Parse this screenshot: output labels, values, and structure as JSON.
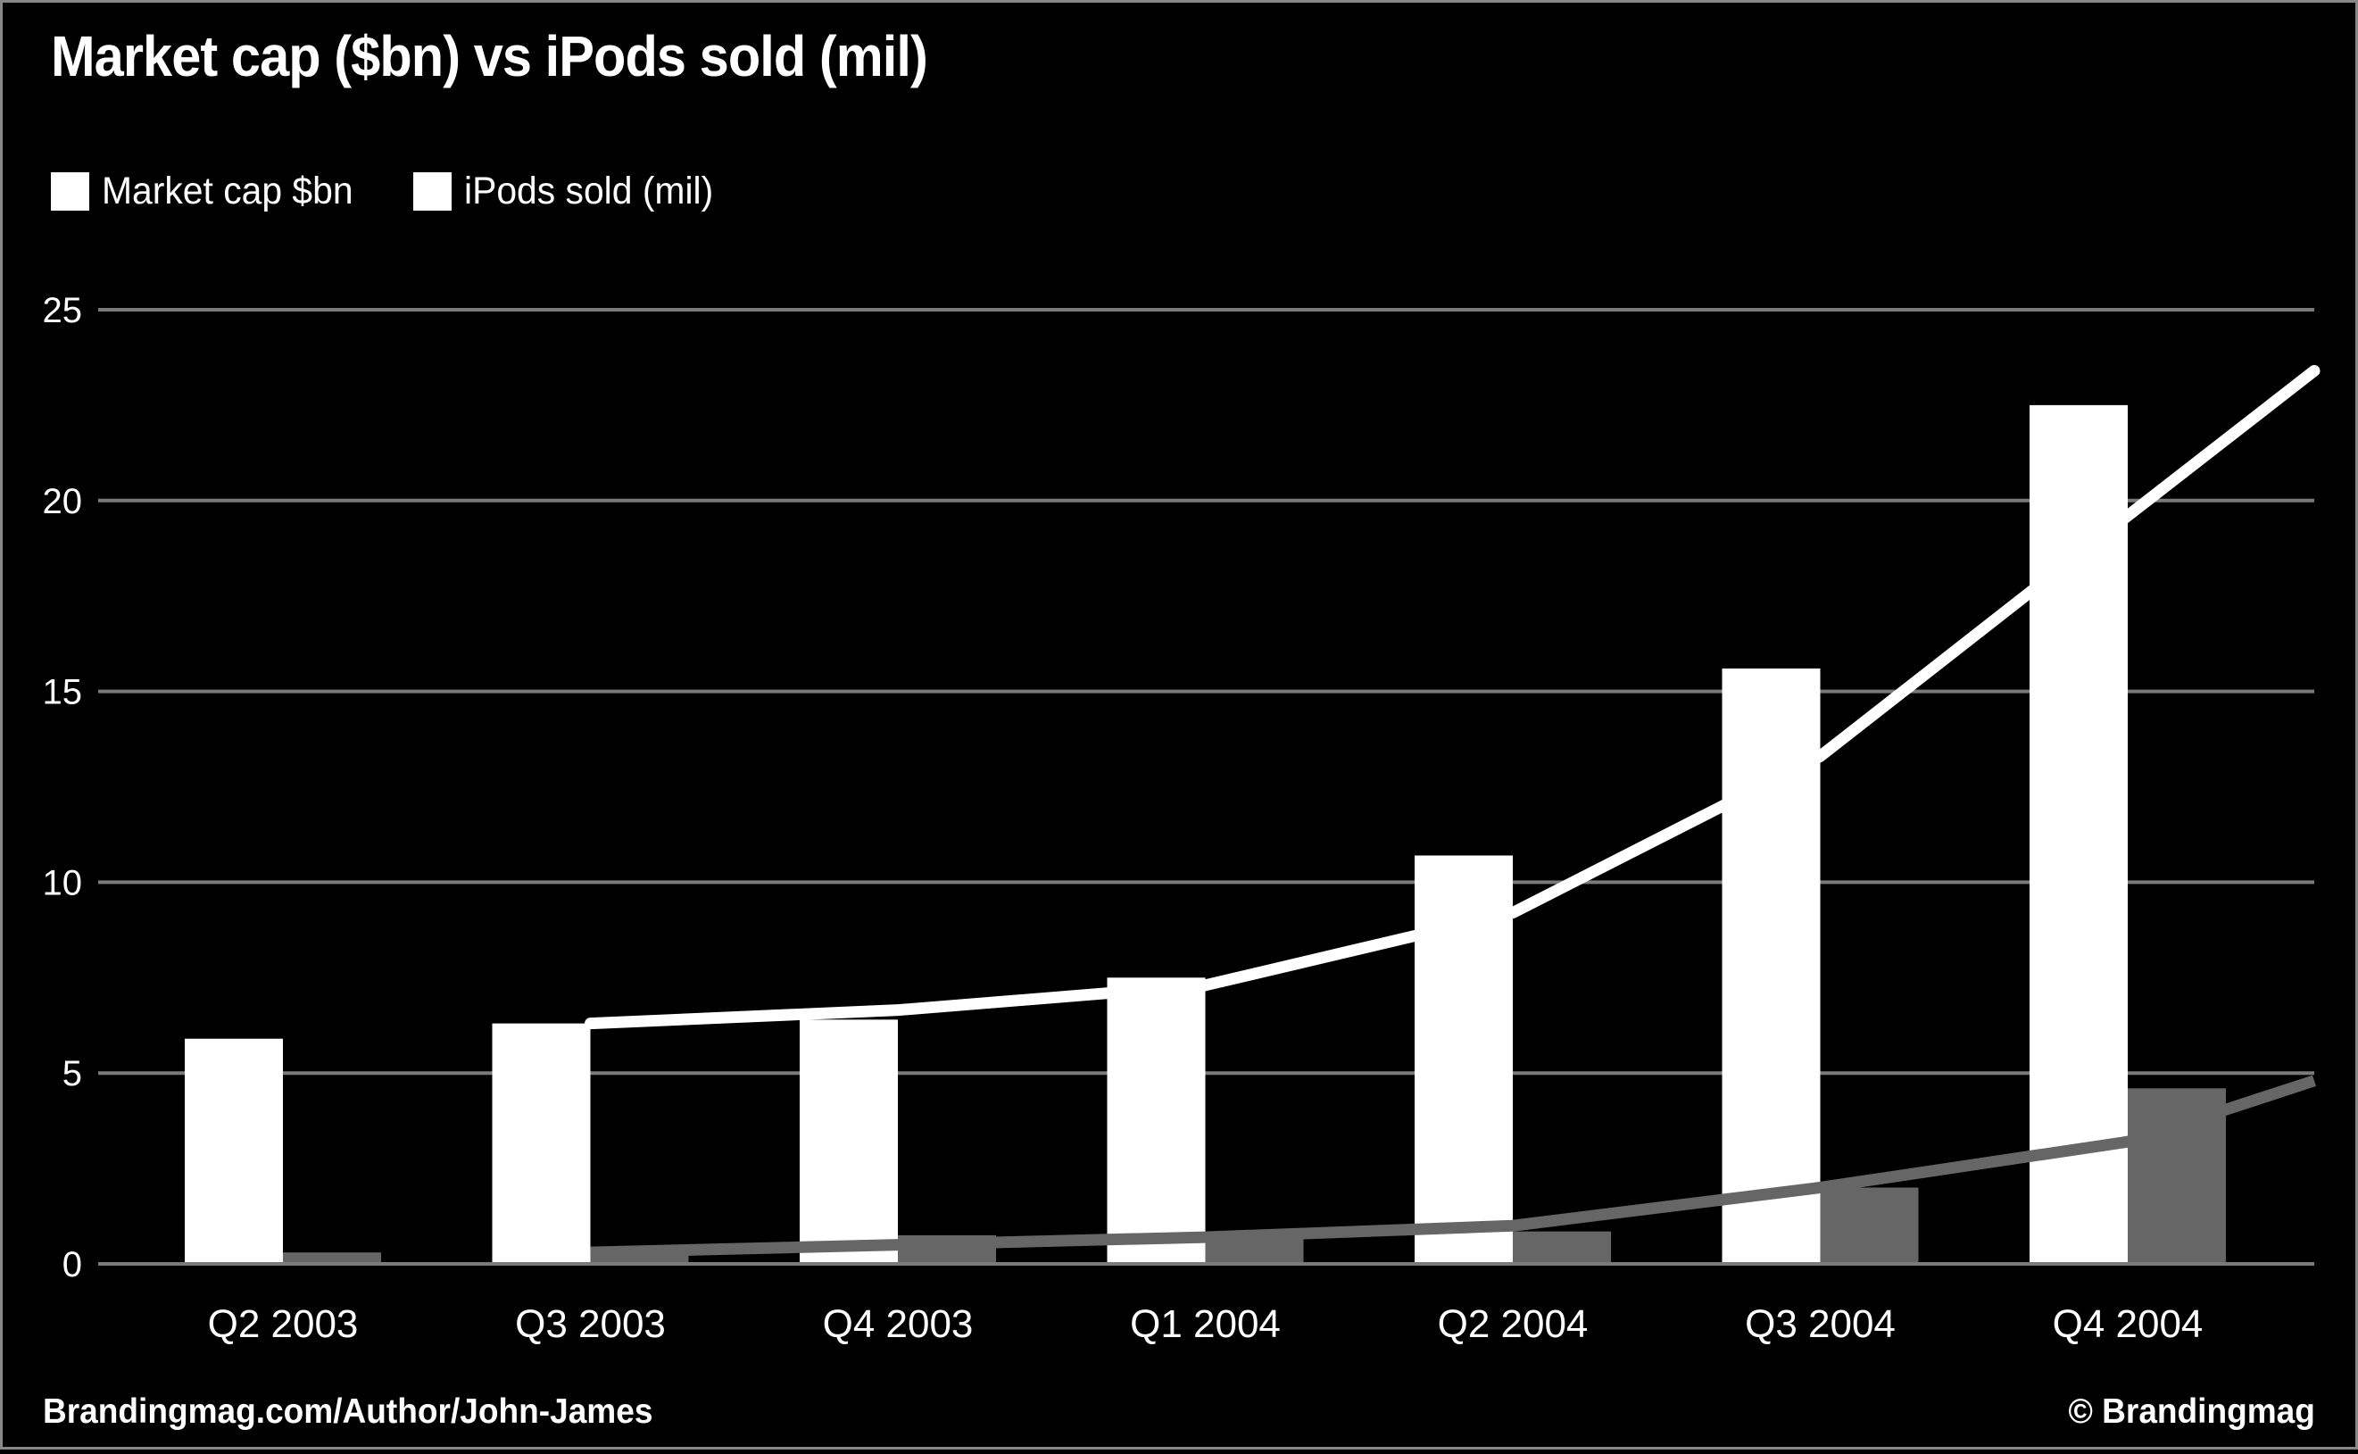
{
  "title": "Market cap ($bn) vs iPods sold (mil)",
  "legend": {
    "items": [
      {
        "label": "Market cap $bn",
        "swatch": "#ffffff"
      },
      {
        "label": "iPods sold (mil)",
        "swatch": "#ffffff"
      }
    ]
  },
  "footer": {
    "left": "Brandingmag.com/Author/John-James",
    "right": "© Brandingmag"
  },
  "colors": {
    "background": "#000000",
    "bar_market_cap": "#ffffff",
    "bar_ipods": "#666666",
    "gridline": "#7a7a7a",
    "axis_text": "#ffffff",
    "frame_border": "#888888",
    "trend_market_cap": "#ffffff",
    "trend_ipods": "#666666"
  },
  "chart_data": {
    "type": "bar",
    "title": "Market cap ($bn) vs iPods sold (mil)",
    "categories": [
      "Q2 2003",
      "Q3 2003",
      "Q4 2003",
      "Q1 2004",
      "Q2 2004",
      "Q3 2004",
      "Q4 2004"
    ],
    "series": [
      {
        "name": "Market cap $bn",
        "type": "bar",
        "color": "#ffffff",
        "values": [
          5.9,
          6.3,
          6.4,
          7.5,
          10.7,
          15.6,
          22.5
        ]
      },
      {
        "name": "iPods sold (mil)",
        "type": "bar",
        "color": "#666666",
        "values": [
          0.3,
          0.35,
          0.75,
          0.8,
          0.85,
          2.0,
          4.6
        ]
      },
      {
        "name": "Market cap trend line",
        "type": "line",
        "color": "#ffffff",
        "start_index": 1,
        "values": [
          6.3,
          6.65,
          7.3,
          9.2,
          13.3,
          19.6
        ],
        "end_value": 23.4,
        "linecap": "round"
      },
      {
        "name": "iPods sold trend line",
        "type": "line",
        "color": "#666666",
        "start_index": 1,
        "values": [
          0.3,
          0.5,
          0.7,
          1.0,
          2.0,
          3.2
        ],
        "end_value": 4.8,
        "linecap": "butt"
      }
    ],
    "xlabel": "",
    "ylabel": "",
    "ylim": [
      0,
      25
    ],
    "yticks": [
      0,
      5,
      10,
      15,
      20,
      25
    ],
    "grid": true,
    "legend_position": "top-left"
  }
}
